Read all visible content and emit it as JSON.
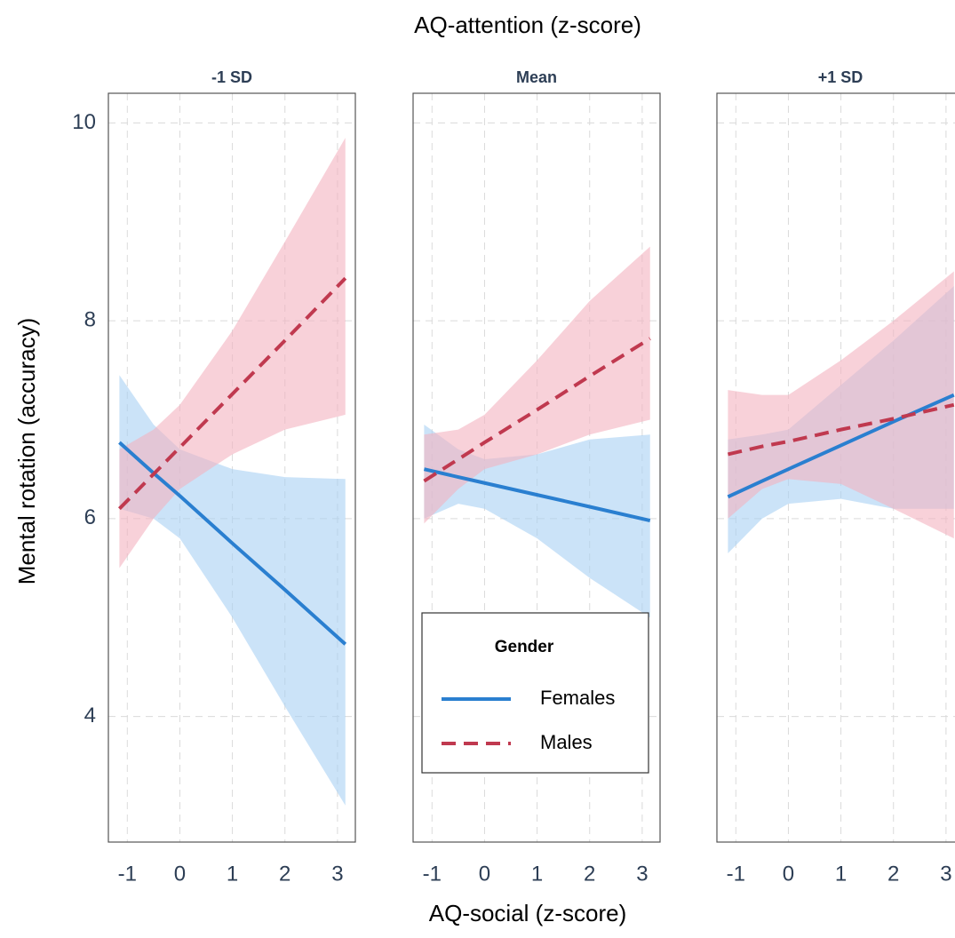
{
  "chart_data": {
    "type": "line",
    "title": "AQ-attention (z-score)",
    "x_label": "AQ-social (z-score)",
    "y_label": "Mental rotation (accuracy)",
    "legend_title": "Gender",
    "legend_position": "center-bottom",
    "grid": true,
    "x": [
      -1.15,
      -0.5,
      0,
      1,
      2,
      3.15
    ],
    "xlim": [
      -1.36,
      3.34
    ],
    "xticks": [
      -1,
      0,
      1,
      2,
      3
    ],
    "ylim": [
      2.73,
      10.3
    ],
    "yticks": [
      4,
      6,
      8,
      10
    ],
    "series": [
      {
        "name": "Females",
        "color": "#2a7fd0",
        "band_color": "#a9d1f4",
        "dashed": false
      },
      {
        "name": "Males",
        "color": "#c0394f",
        "band_color": "#f3b3bf",
        "dashed": true
      }
    ],
    "panels": [
      {
        "title": "-1 SD",
        "values": [
          [
            6.77,
            6.46,
            6.23,
            5.75,
            5.28,
            4.73
          ],
          [
            6.1,
            6.45,
            6.72,
            7.26,
            7.8,
            8.43
          ]
        ],
        "upper": [
          [
            7.45,
            6.95,
            6.7,
            6.5,
            6.42,
            6.4
          ],
          [
            6.7,
            6.9,
            7.15,
            7.9,
            8.8,
            9.85
          ]
        ],
        "lower": [
          [
            6.1,
            6.0,
            5.8,
            5.0,
            4.1,
            3.1
          ],
          [
            5.5,
            6.0,
            6.3,
            6.65,
            6.9,
            7.05
          ]
        ]
      },
      {
        "title": "Mean",
        "values": [
          [
            6.5,
            6.42,
            6.36,
            6.24,
            6.12,
            5.98
          ],
          [
            6.38,
            6.6,
            6.77,
            7.1,
            7.44,
            7.82
          ]
        ],
        "upper": [
          [
            6.95,
            6.7,
            6.6,
            6.65,
            6.8,
            6.85
          ],
          [
            6.85,
            6.9,
            7.05,
            7.6,
            8.2,
            8.75
          ]
        ],
        "lower": [
          [
            6.0,
            6.15,
            6.1,
            5.8,
            5.4,
            5.0
          ],
          [
            5.95,
            6.3,
            6.5,
            6.65,
            6.85,
            7.0
          ]
        ]
      },
      {
        "title": "+1 SD",
        "values": [
          [
            6.22,
            6.38,
            6.5,
            6.74,
            6.98,
            7.25
          ],
          [
            6.65,
            6.73,
            6.78,
            6.9,
            7.01,
            7.15
          ]
        ],
        "upper": [
          [
            6.8,
            6.85,
            6.9,
            7.35,
            7.8,
            8.35
          ],
          [
            7.3,
            7.25,
            7.25,
            7.6,
            8.0,
            8.5
          ]
        ],
        "lower": [
          [
            5.65,
            6.0,
            6.15,
            6.2,
            6.1,
            6.1
          ],
          [
            6.0,
            6.3,
            6.4,
            6.35,
            6.1,
            5.8
          ]
        ]
      }
    ]
  }
}
